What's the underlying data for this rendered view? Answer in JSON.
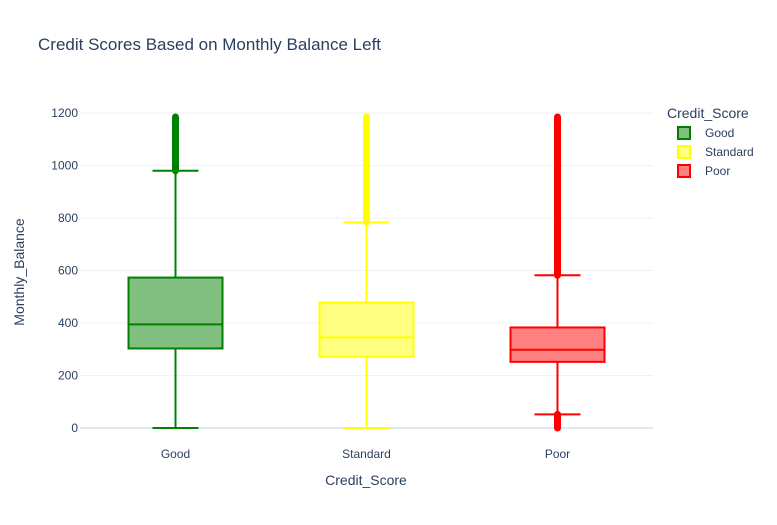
{
  "chart_data": {
    "type": "box",
    "title": "Credit Scores Based on Monthly Balance Left",
    "xlabel": "Credit_Score",
    "ylabel": "Monthly_Balance",
    "ylim": [
      -20,
      1250
    ],
    "yticks": [
      0,
      200,
      400,
      600,
      800,
      1000,
      1200
    ],
    "grid": true,
    "legend": {
      "title": "Credit_Score",
      "position": "top-right"
    },
    "series": [
      {
        "name": "Good",
        "color": "#008000",
        "fill": "#80bf80",
        "min": 0,
        "q1": 303,
        "median": 395,
        "q3": 573,
        "whisker_high": 980,
        "outliers_range": [
          980,
          1185
        ]
      },
      {
        "name": "Standard",
        "color": "#ffff00",
        "fill": "#ffff80",
        "min": 0,
        "q1": 272,
        "median": 345,
        "q3": 478,
        "whisker_high": 783,
        "outliers_range": [
          783,
          1185
        ]
      },
      {
        "name": "Poor",
        "color": "#ff0000",
        "fill": "#ff8080",
        "min": 52,
        "q1": 252,
        "median": 298,
        "q3": 383,
        "whisker_high": 582,
        "outliers_low_range": [
          0,
          52
        ],
        "outliers_range": [
          582,
          1185
        ]
      }
    ]
  }
}
